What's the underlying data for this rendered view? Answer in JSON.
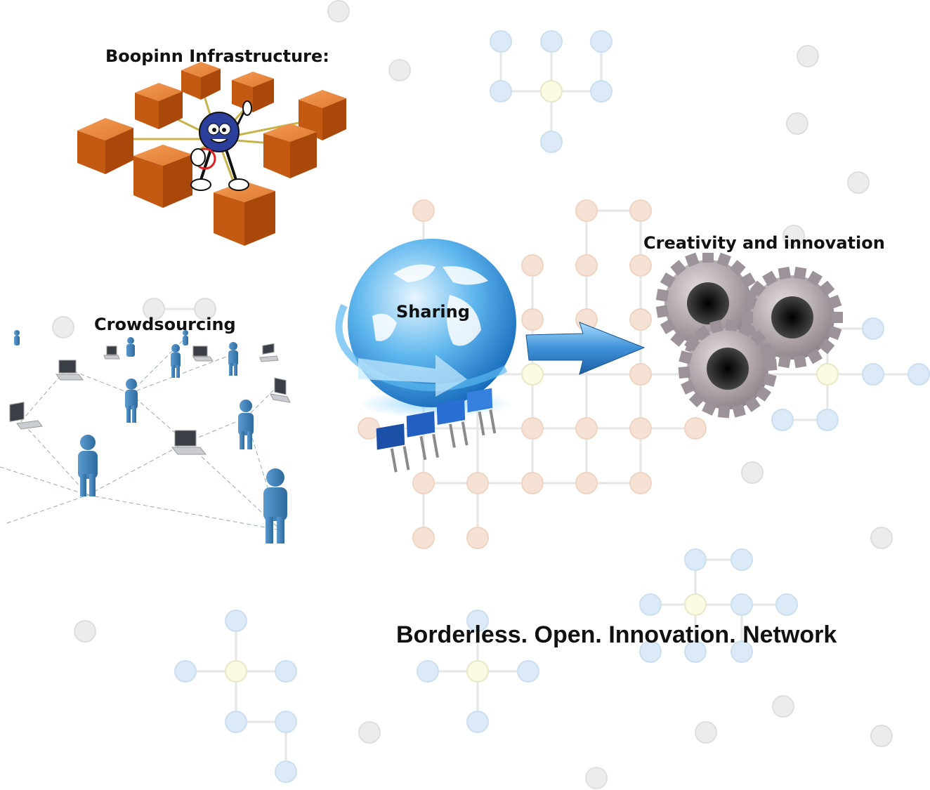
{
  "labels": {
    "infrastructure": "Boopinn Infrastructure:",
    "crowdsourcing": "Crowdsourcing",
    "sharing": "Sharing",
    "creativity": "Creativity and innovation"
  },
  "tagline": "Borderless. Open. Innovation. Network",
  "colors": {
    "cube_orange": "#d2691e",
    "globe_blue": "#2a8fd8",
    "arrow_blue": "#3d8fd6",
    "gear_gray": "#a59aa0",
    "person_blue": "#4a86b8",
    "node_blue": "#dbeaf6",
    "node_orange": "#f6e2d4",
    "node_gray": "#ececec"
  },
  "icons": {
    "infrastructure": "orange-cube-network-with-mascot",
    "crowdsourcing": "people-laptops-network",
    "sharing": "globe-with-www",
    "arrow": "right-arrow",
    "creativity": "gears"
  }
}
